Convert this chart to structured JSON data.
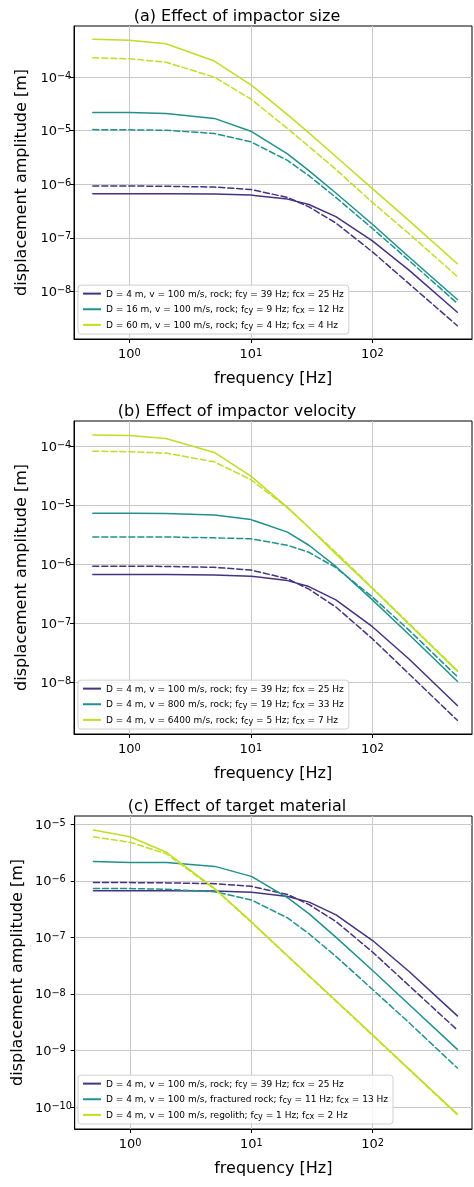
{
  "chart_data": [
    {
      "type": "line",
      "title": "(a) Effect of impactor size",
      "xlabel": "frequency [Hz]",
      "ylabel": "displacement amplitude [m]",
      "log": "xy",
      "grid": true,
      "legend": "bottom left",
      "marker": "none",
      "x": [
        0.5,
        1,
        2,
        5,
        10,
        20,
        30,
        50,
        100,
        200,
        500
      ],
      "xlim": [
        0.35,
        660
      ],
      "xticks": [
        {
          "value": 1,
          "label": "10$^{0}$"
        },
        {
          "value": 10,
          "label": "10$^{1}$"
        },
        {
          "value": 100,
          "label": "10$^{2}$"
        }
      ],
      "ylim": [
        1.3e-09,
        0.0009
      ],
      "yticks": [
        {
          "value": 1e-08,
          "label": "10$^{−8}$"
        },
        {
          "value": 1e-07,
          "label": "10$^{−7}$"
        },
        {
          "value": 1e-06,
          "label": "10$^{−6}$"
        },
        {
          "value": 1e-05,
          "label": "10$^{−5}$"
        },
        {
          "value": 0.0001,
          "label": "10$^{−4}$"
        }
      ],
      "series": [
        {
          "name": "D = 4 m, v = 100 m/s, rock; f$_{cy}$ = 39 Hz; f$_{cx}$ = 25 Hz",
          "color": "#46327e",
          "line_style": "solid",
          "values": [
            6.7e-07,
            6.7e-07,
            6.7e-07,
            6.6e-07,
            6.3e-07,
            5.3e-07,
            4.2e-07,
            2.5e-07,
            8.8e-08,
            2.5e-08,
            4.1e-09
          ]
        },
        {
          "color": "#46327e",
          "line_style": "dashed",
          "values": [
            9.3e-07,
            9.3e-07,
            9.2e-07,
            8.9e-07,
            8e-07,
            5.7e-07,
            3.8e-07,
            1.9e-07,
            5.5e-08,
            1.4e-08,
            2.3e-09
          ]
        },
        {
          "name": "D = 16 m, v = 100 m/s, rock; f$_{cy}$ = 9 Hz; f$_{cx}$ = 12 Hz",
          "color": "#21918c",
          "line_style": "solid",
          "values": [
            2.2e-05,
            2.2e-05,
            2.1e-05,
            1.7e-05,
            9.8e-06,
            3.7e-06,
            1.8e-06,
            6.9e-07,
            1.8e-07,
            4.4e-08,
            7.1e-09
          ]
        },
        {
          "color": "#21918c",
          "line_style": "dashed",
          "values": [
            1.05e-05,
            1.04e-05,
            1.02e-05,
            8.9e-06,
            6.2e-06,
            2.8e-06,
            1.45e-06,
            5.7e-07,
            1.5e-07,
            3.8e-08,
            6e-09
          ]
        },
        {
          "name": "D = 60 m, v = 100 m/s, rock; f$_{cy}$ = 4 Hz; f$_{cx}$ = 4 Hz",
          "color": "#bddf26",
          "line_style": "solid",
          "values": [
            0.00051,
            0.00049,
            0.00042,
            0.0002,
            7.2e-05,
            2e-05,
            9.1e-06,
            3.3e-06,
            8.3e-07,
            2.1e-07,
            3.3e-08
          ]
        },
        {
          "color": "#bddf26",
          "line_style": "dashed",
          "values": [
            0.00023,
            0.00022,
            0.00019,
            0.0001,
            3.9e-05,
            1.1e-05,
            5.1e-06,
            1.9e-06,
            4.6e-07,
            1.2e-07,
            1.9e-08
          ]
        }
      ]
    },
    {
      "type": "line",
      "title": "(b) Effect of impactor velocity",
      "xlabel": "frequency [Hz]",
      "ylabel": "displacement amplitude [m]",
      "log": "xy",
      "grid": true,
      "legend": "bottom left",
      "marker": "none",
      "x": [
        0.5,
        1,
        2,
        5,
        10,
        20,
        30,
        50,
        100,
        200,
        500
      ],
      "xlim": [
        0.35,
        660
      ],
      "xticks": [
        {
          "value": 1,
          "label": "10$^{0}$"
        },
        {
          "value": 10,
          "label": "10$^{1}$"
        },
        {
          "value": 100,
          "label": "10$^{2}$"
        }
      ],
      "ylim": [
        1.35e-09,
        0.000265
      ],
      "yticks": [
        {
          "value": 1e-08,
          "label": "10$^{−8}$"
        },
        {
          "value": 1e-07,
          "label": "10$^{−7}$"
        },
        {
          "value": 1e-06,
          "label": "10$^{−6}$"
        },
        {
          "value": 1e-05,
          "label": "10$^{−5}$"
        },
        {
          "value": 0.0001,
          "label": "10$^{−4}$"
        }
      ],
      "series": [
        {
          "name": "D = 4 m, v = 100 m/s, rock; f$_{cy}$ = 39 Hz; f$_{cx}$ = 25 Hz",
          "color": "#46327e",
          "line_style": "solid",
          "values": [
            6.7e-07,
            6.7e-07,
            6.7e-07,
            6.6e-07,
            6.3e-07,
            5.3e-07,
            4.2e-07,
            2.5e-07,
            8.8e-08,
            2.5e-08,
            4.1e-09
          ]
        },
        {
          "color": "#46327e",
          "line_style": "dashed",
          "values": [
            9.3e-07,
            9.3e-07,
            9.2e-07,
            8.9e-07,
            8e-07,
            5.7e-07,
            3.8e-07,
            1.9e-07,
            5.5e-08,
            1.4e-08,
            2.3e-09
          ]
        },
        {
          "name": "D = 4 m, v = 800 m/s, rock; f$_{cy}$ = 19 Hz; f$_{cx}$ = 33 Hz",
          "color": "#21918c",
          "line_style": "solid",
          "values": [
            7.3e-06,
            7.3e-06,
            7.2e-06,
            6.8e-06,
            5.7e-06,
            3.5e-06,
            2.1e-06,
            9.2e-07,
            2.5e-07,
            6.5e-08,
            1.05e-08
          ]
        },
        {
          "color": "#21918c",
          "line_style": "dashed",
          "values": [
            2.9e-06,
            2.9e-06,
            2.9e-06,
            2.8e-06,
            2.7e-06,
            2.1e-06,
            1.6e-06,
            8.8e-07,
            2.8e-07,
            7.7e-08,
            1.26e-08
          ]
        },
        {
          "name": "D = 4 m, v = 6400 m/s, rock; f$_{cy}$ = 5 Hz; f$_{cx}$ = 7 Hz",
          "color": "#bddf26",
          "line_style": "solid",
          "values": [
            0.000154,
            0.00015,
            0.000134,
            7.8e-05,
            3.1e-05,
            9.2e-06,
            4.2e-06,
            1.5e-06,
            3.9e-07,
            9.7e-08,
            1.56e-08
          ]
        },
        {
          "color": "#bddf26",
          "line_style": "dashed",
          "values": [
            8.2e-05,
            8e-05,
            7.6e-05,
            5.4e-05,
            2.7e-05,
            9e-06,
            4.2e-06,
            1.6e-06,
            4e-07,
            1e-07,
            1.6e-08
          ]
        }
      ]
    },
    {
      "type": "line",
      "title": "(c) Effect of target material",
      "xlabel": "frequency [Hz]",
      "ylabel": "displacement amplitude [m]",
      "log": "xy",
      "grid": true,
      "legend": "bottom left",
      "marker": "none",
      "x": [
        0.5,
        1,
        2,
        5,
        10,
        20,
        30,
        50,
        100,
        200,
        500
      ],
      "xlim": [
        0.35,
        660
      ],
      "xticks": [
        {
          "value": 1,
          "label": "10$^{0}$"
        },
        {
          "value": 10,
          "label": "10$^{1}$"
        },
        {
          "value": 100,
          "label": "10$^{2}$"
        }
      ],
      "ylim": [
        4.1e-11,
        1.4e-05
      ],
      "yticks": [
        {
          "value": 1e-10,
          "label": "10$^{−10}$"
        },
        {
          "value": 1e-09,
          "label": "10$^{−9}$"
        },
        {
          "value": 1e-08,
          "label": "10$^{−8}$"
        },
        {
          "value": 1e-07,
          "label": "10$^{−7}$"
        },
        {
          "value": 1e-06,
          "label": "10$^{−6}$"
        },
        {
          "value": 1e-05,
          "label": "10$^{−5}$"
        }
      ],
      "series": [
        {
          "name": "D = 4 m, v = 100 m/s, rock; f$_{cy}$ = 39 Hz; f$_{cx}$ = 25 Hz",
          "color": "#46327e",
          "line_style": "solid",
          "values": [
            6.7e-07,
            6.7e-07,
            6.7e-07,
            6.6e-07,
            6.3e-07,
            5.3e-07,
            4.2e-07,
            2.5e-07,
            8.8e-08,
            2.5e-08,
            4.1e-09
          ]
        },
        {
          "color": "#46327e",
          "line_style": "dashed",
          "values": [
            9.3e-07,
            9.3e-07,
            9.2e-07,
            8.9e-07,
            8e-07,
            5.7e-07,
            3.8e-07,
            1.9e-07,
            5.5e-08,
            1.4e-08,
            2.3e-09
          ]
        },
        {
          "name": "D = 4 m, v = 100 m/s, fractured rock; f$_{cy}$ = 11 Hz; f$_{cx}$ = 13 Hz",
          "color": "#21918c",
          "line_style": "solid",
          "values": [
            2.2e-06,
            2.1e-06,
            2.1e-06,
            1.8e-06,
            1.2e-06,
            5e-07,
            2.6e-07,
            1e-07,
            2.6e-08,
            6.5e-09,
            1.05e-09
          ]
        },
        {
          "color": "#21918c",
          "line_style": "dashed",
          "values": [
            7.3e-07,
            7.3e-07,
            7.1e-07,
            6.4e-07,
            4.6e-07,
            2.2e-07,
            1.15e-07,
            4.6e-08,
            1.2e-08,
            3.1e-09,
            4.9e-10
          ]
        },
        {
          "name": "D = 4 m, v = 100 m/s, regolith; f$_{cy}$ = 1 Hz; f$_{cx}$ = 2 Hz",
          "color": "#bddf26",
          "line_style": "solid",
          "values": [
            7.9e-06,
            6e-06,
            3.2e-06,
            7.3e-07,
            1.9e-07,
            4.7e-08,
            2.1e-08,
            7.6e-09,
            1.9e-09,
            4.7e-10,
            7.5e-11
          ]
        },
        {
          "color": "#bddf26",
          "line_style": "dashed",
          "values": [
            6e-06,
            4.8e-06,
            3e-06,
            7.1e-07,
            1.85e-07,
            4.6e-08,
            2.05e-08,
            7.4e-09,
            1.85e-09,
            4.6e-10,
            7.3e-11
          ]
        }
      ]
    }
  ]
}
